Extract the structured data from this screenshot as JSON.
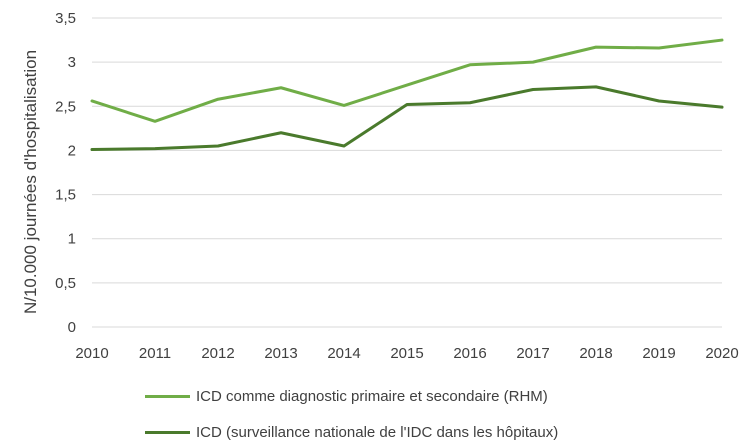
{
  "chart_data": {
    "type": "line",
    "title": "",
    "xlabel": "",
    "ylabel": "N/10.000 journées d'hospitalisation",
    "x": [
      2010,
      2011,
      2012,
      2013,
      2014,
      2015,
      2016,
      2017,
      2018,
      2019,
      2020
    ],
    "ylim": [
      0,
      3.5
    ],
    "yticks": [
      "0",
      "0,5",
      "1",
      "1,5",
      "2",
      "2,5",
      "3",
      "3,5"
    ],
    "grid": true,
    "legend_position": "bottom",
    "series": [
      {
        "name": "ICD comme diagnostic primaire et secondaire (RHM)",
        "color": "#70ad47",
        "values": [
          2.56,
          2.33,
          2.58,
          2.71,
          2.51,
          2.74,
          2.97,
          3.0,
          3.17,
          3.16,
          3.25
        ]
      },
      {
        "name": "ICD (surveillance nationale de l'IDC dans les hôpitaux)",
        "color": "#4a7a2c",
        "values": [
          2.01,
          2.02,
          2.05,
          2.2,
          2.05,
          2.52,
          2.54,
          2.69,
          2.72,
          2.56,
          2.49
        ]
      }
    ]
  }
}
